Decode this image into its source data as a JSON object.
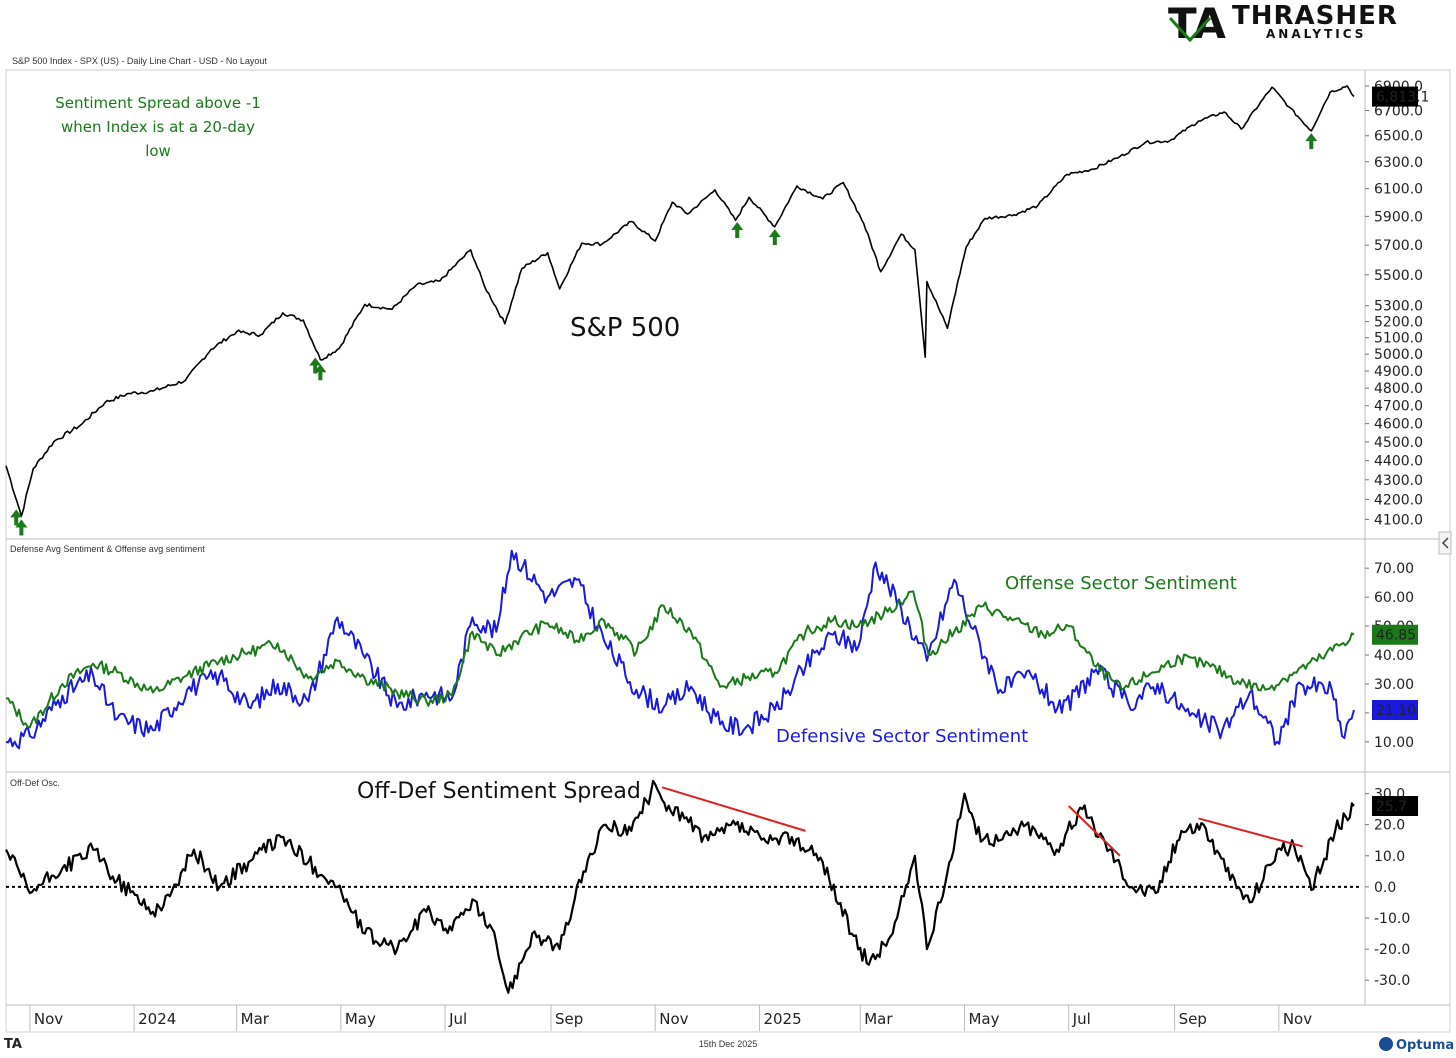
{
  "brand": {
    "logo_mark": "TA",
    "name_line1": "THRASHER",
    "name_line2": "ANALYTICS"
  },
  "header": {
    "chart_caption": "S&P 500 Index - SPX (US) - Daily Line Chart - USD - No Layout"
  },
  "footer": {
    "date": "15th Dec 2025",
    "left_logo": "TA",
    "right_logo": "Optuma"
  },
  "colors": {
    "price": "#000000",
    "offense": "#1a7a1a",
    "defense": "#1a1adc",
    "arrow": "#1a7a1a",
    "divergence": "#e02020",
    "osc": "#000000"
  },
  "chart_data": [
    {
      "type": "line",
      "title": "S&P 500",
      "annotation": "Sentiment Spread above -1 when Index is at a 20-day low",
      "last_value_label": "6,813.1",
      "ylim": [
        4000,
        6950
      ],
      "yticks": [
        4100,
        4200,
        4300,
        4400,
        4500,
        4600,
        4700,
        4800,
        4900,
        5000,
        5100,
        5200,
        5300,
        5500,
        5700,
        5900,
        6100,
        6300,
        6500,
        6700,
        6900
      ],
      "ytick_labels": [
        "4100.0",
        "4200.0",
        "4300.0",
        "4400.0",
        "4500.0",
        "4600.0",
        "4700.0",
        "4800.0",
        "4900.0",
        "5000.0",
        "5100.0",
        "5200.0",
        "5300.0",
        "5500.0",
        "5700.0",
        "5900.0",
        "6100.0",
        "6300.0",
        "6500.0",
        "6700.0",
        "6900.0"
      ],
      "x": [
        "2023-10-18",
        "2023-10-27",
        "2023-11-03",
        "2023-11-15",
        "2023-12-01",
        "2023-12-15",
        "2023-12-29",
        "2024-01-12",
        "2024-01-31",
        "2024-02-15",
        "2024-03-01",
        "2024-03-15",
        "2024-03-28",
        "2024-04-09",
        "2024-04-19",
        "2024-04-30",
        "2024-05-15",
        "2024-05-31",
        "2024-06-14",
        "2024-06-28",
        "2024-07-16",
        "2024-07-24",
        "2024-08-05",
        "2024-08-15",
        "2024-08-30",
        "2024-09-06",
        "2024-09-19",
        "2024-10-01",
        "2024-10-18",
        "2024-11-01",
        "2024-11-11",
        "2024-11-20",
        "2024-12-06",
        "2024-12-18",
        "2024-12-26",
        "2025-01-10",
        "2025-01-23",
        "2025-02-07",
        "2025-02-19",
        "2025-03-03",
        "2025-03-13",
        "2025-03-25",
        "2025-04-02",
        "2025-04-08",
        "2025-04-09",
        "2025-04-21",
        "2025-05-02",
        "2025-05-13",
        "2025-05-30",
        "2025-06-13",
        "2025-06-30",
        "2025-07-15",
        "2025-07-31",
        "2025-08-15",
        "2025-08-29",
        "2025-09-15",
        "2025-09-30",
        "2025-10-10",
        "2025-10-28",
        "2025-11-07",
        "2025-11-20",
        "2025-12-01",
        "2025-12-11",
        "2025-12-15"
      ],
      "values": [
        4373,
        4117,
        4358,
        4502,
        4594,
        4719,
        4770,
        4783,
        4845,
        5029,
        5137,
        5117,
        5254,
        5209,
        4967,
        5035,
        5308,
        5277,
        5431,
        5460,
        5667,
        5427,
        5186,
        5543,
        5648,
        5408,
        5713,
        5708,
        5864,
        5728,
        6001,
        5917,
        6090,
        5872,
        6037,
        5827,
        6119,
        6025,
        6144,
        5850,
        5521,
        5776,
        5670,
        4982,
        5456,
        5158,
        5686,
        5886,
        5911,
        5977,
        6205,
        6244,
        6339,
        6449,
        6460,
        6615,
        6688,
        6552,
        6890,
        6728,
        6538,
        6849,
        6901,
        6813
      ],
      "markers": [
        {
          "type": "up-arrow",
          "x": "2023-10-24",
          "y": 4150
        },
        {
          "type": "up-arrow",
          "x": "2023-10-27",
          "y": 4100
        },
        {
          "type": "up-arrow",
          "x": "2024-04-16",
          "y": 4980
        },
        {
          "type": "up-arrow",
          "x": "2024-04-19",
          "y": 4940
        },
        {
          "type": "up-arrow",
          "x": "2024-12-19",
          "y": 5860
        },
        {
          "type": "up-arrow",
          "x": "2025-01-10",
          "y": 5810
        },
        {
          "type": "up-arrow",
          "x": "2025-11-20",
          "y": 6520
        }
      ]
    },
    {
      "type": "line",
      "title": "Defense Avg Sentiment & Offense avg sentiment",
      "ylim": [
        2,
        78
      ],
      "yticks": [
        10,
        20,
        30,
        40,
        50,
        60,
        70
      ],
      "ytick_labels": [
        "10.00",
        "20.00",
        "30.00",
        "40.00",
        "50.00",
        "60.00",
        "70.00"
      ],
      "annotations": [
        "Offense Sector Sentiment",
        "Defensive Sector Sentiment"
      ],
      "series": [
        {
          "name": "Offense Sector Sentiment",
          "last_value_label": "46.85",
          "x": [
            "2023-10-18",
            "2023-11-01",
            "2023-11-20",
            "2023-12-08",
            "2023-12-22",
            "2024-01-12",
            "2024-02-01",
            "2024-02-20",
            "2024-03-08",
            "2024-03-25",
            "2024-04-12",
            "2024-04-29",
            "2024-05-15",
            "2024-06-03",
            "2024-06-20",
            "2024-07-05",
            "2024-07-17",
            "2024-07-31",
            "2024-08-14",
            "2024-08-30",
            "2024-09-16",
            "2024-10-02",
            "2024-10-21",
            "2024-11-06",
            "2024-11-22",
            "2024-12-09",
            "2024-12-24",
            "2025-01-10",
            "2025-01-28",
            "2025-02-13",
            "2025-02-28",
            "2025-03-17",
            "2025-04-01",
            "2025-04-10",
            "2025-04-25",
            "2025-05-12",
            "2025-05-29",
            "2025-06-16",
            "2025-07-01",
            "2025-07-17",
            "2025-08-01",
            "2025-08-19",
            "2025-09-04",
            "2025-09-22",
            "2025-10-08",
            "2025-10-24",
            "2025-11-10",
            "2025-11-26",
            "2025-12-15"
          ],
          "values": [
            25,
            15,
            30,
            37,
            34,
            27,
            33,
            38,
            41,
            44,
            32,
            38,
            32,
            27,
            24,
            26,
            48,
            40,
            46,
            51,
            45,
            52,
            41,
            57,
            48,
            29,
            32,
            34,
            48,
            52,
            50,
            55,
            62,
            40,
            48,
            57,
            52,
            47,
            50,
            36,
            28,
            34,
            39,
            36,
            31,
            28,
            34,
            39,
            47
          ]
        },
        {
          "name": "Defensive Sector Sentiment",
          "last_value_label": "21.10",
          "x": [
            "2023-10-18",
            "2023-11-01",
            "2023-11-20",
            "2023-12-08",
            "2023-12-22",
            "2024-01-12",
            "2024-02-01",
            "2024-02-20",
            "2024-03-08",
            "2024-03-25",
            "2024-04-12",
            "2024-04-29",
            "2024-05-15",
            "2024-06-03",
            "2024-06-20",
            "2024-07-05",
            "2024-07-17",
            "2024-07-31",
            "2024-08-09",
            "2024-08-30",
            "2024-09-16",
            "2024-10-02",
            "2024-10-21",
            "2024-11-06",
            "2024-11-22",
            "2024-12-09",
            "2024-12-24",
            "2025-01-10",
            "2025-01-28",
            "2025-02-13",
            "2025-02-28",
            "2025-03-10",
            "2025-03-25",
            "2025-04-09",
            "2025-04-25",
            "2025-05-06",
            "2025-05-22",
            "2025-06-09",
            "2025-06-27",
            "2025-07-17",
            "2025-08-05",
            "2025-08-22",
            "2025-09-10",
            "2025-09-29",
            "2025-10-15",
            "2025-10-31",
            "2025-11-14",
            "2025-12-02",
            "2025-12-08",
            "2025-12-15"
          ],
          "values": [
            10,
            12,
            26,
            33,
            18,
            14,
            28,
            33,
            22,
            30,
            24,
            53,
            39,
            22,
            27,
            25,
            53,
            48,
            76,
            60,
            66,
            45,
            28,
            22,
            29,
            16,
            15,
            21,
            36,
            47,
            43,
            72,
            56,
            38,
            66,
            49,
            28,
            33,
            20,
            35,
            23,
            30,
            19,
            14,
            27,
            10,
            30,
            28,
            12,
            21
          ]
        }
      ]
    },
    {
      "type": "line",
      "title": "Off-Def Osc.",
      "annotation": "Off-Def Sentiment Spread",
      "last_value_label": "25.7",
      "ylim": [
        -37,
        35
      ],
      "yticks": [
        -30,
        -20,
        -10,
        0,
        10,
        20,
        30
      ],
      "ytick_labels": [
        "-30.0",
        "-20.0",
        "-10.0",
        "0.0",
        "10.0",
        "20.0",
        "30.0"
      ],
      "zero_line": "dotted",
      "x": [
        "2023-10-18",
        "2023-11-01",
        "2023-11-20",
        "2023-12-08",
        "2023-12-22",
        "2024-01-12",
        "2024-01-22",
        "2024-02-05",
        "2024-02-20",
        "2024-03-08",
        "2024-03-27",
        "2024-04-12",
        "2024-04-29",
        "2024-05-15",
        "2024-06-03",
        "2024-06-20",
        "2024-07-05",
        "2024-07-17",
        "2024-07-31",
        "2024-08-07",
        "2024-08-21",
        "2024-09-06",
        "2024-09-20",
        "2024-10-03",
        "2024-10-18",
        "2024-11-01",
        "2024-11-05",
        "2024-11-18",
        "2024-12-02",
        "2024-12-18",
        "2025-01-06",
        "2025-01-20",
        "2025-02-07",
        "2025-02-24",
        "2025-03-06",
        "2025-03-20",
        "2025-04-02",
        "2025-04-09",
        "2025-04-17",
        "2025-05-01",
        "2025-05-08",
        "2025-05-22",
        "2025-06-06",
        "2025-06-24",
        "2025-07-09",
        "2025-07-25",
        "2025-08-07",
        "2025-08-21",
        "2025-09-05",
        "2025-09-18",
        "2025-10-01",
        "2025-10-15",
        "2025-10-31",
        "2025-11-10",
        "2025-11-20",
        "2025-12-04",
        "2025-12-15"
      ],
      "values": [
        12,
        -2,
        6,
        12,
        2,
        -8,
        -3,
        12,
        0,
        8,
        16,
        8,
        0,
        -15,
        -20,
        -8,
        -14,
        -4,
        -18,
        -34,
        -15,
        -20,
        5,
        20,
        18,
        33,
        28,
        22,
        15,
        20,
        14,
        16,
        8,
        -15,
        -25,
        -15,
        10,
        -20,
        -5,
        30,
        17,
        15,
        20,
        12,
        25,
        12,
        0,
        -2,
        18,
        20,
        5,
        -5,
        12,
        13,
        -1,
        18,
        26
      ],
      "divergences": [
        {
          "from": {
            "x": "2024-11-05",
            "y": 32
          },
          "to": {
            "x": "2025-01-28",
            "y": 18
          }
        },
        {
          "from": {
            "x": "2025-07-01",
            "y": 26
          },
          "to": {
            "x": "2025-07-31",
            "y": 10
          }
        },
        {
          "from": {
            "x": "2025-09-15",
            "y": 22
          },
          "to": {
            "x": "2025-11-15",
            "y": 13
          }
        }
      ]
    }
  ],
  "x_axis": {
    "ticks": [
      {
        "date": "2023-11-01",
        "label": "Nov"
      },
      {
        "date": "2024-01-01",
        "label": "2024"
      },
      {
        "date": "2024-03-01",
        "label": "Mar"
      },
      {
        "date": "2024-05-01",
        "label": "May"
      },
      {
        "date": "2024-07-01",
        "label": "Jul"
      },
      {
        "date": "2024-09-01",
        "label": "Sep"
      },
      {
        "date": "2024-11-01",
        "label": "Nov"
      },
      {
        "date": "2025-01-01",
        "label": "2025"
      },
      {
        "date": "2025-03-01",
        "label": "Mar"
      },
      {
        "date": "2025-05-01",
        "label": "May"
      },
      {
        "date": "2025-07-01",
        "label": "Jul"
      },
      {
        "date": "2025-09-01",
        "label": "Sep"
      },
      {
        "date": "2025-11-01",
        "label": "Nov"
      }
    ]
  }
}
